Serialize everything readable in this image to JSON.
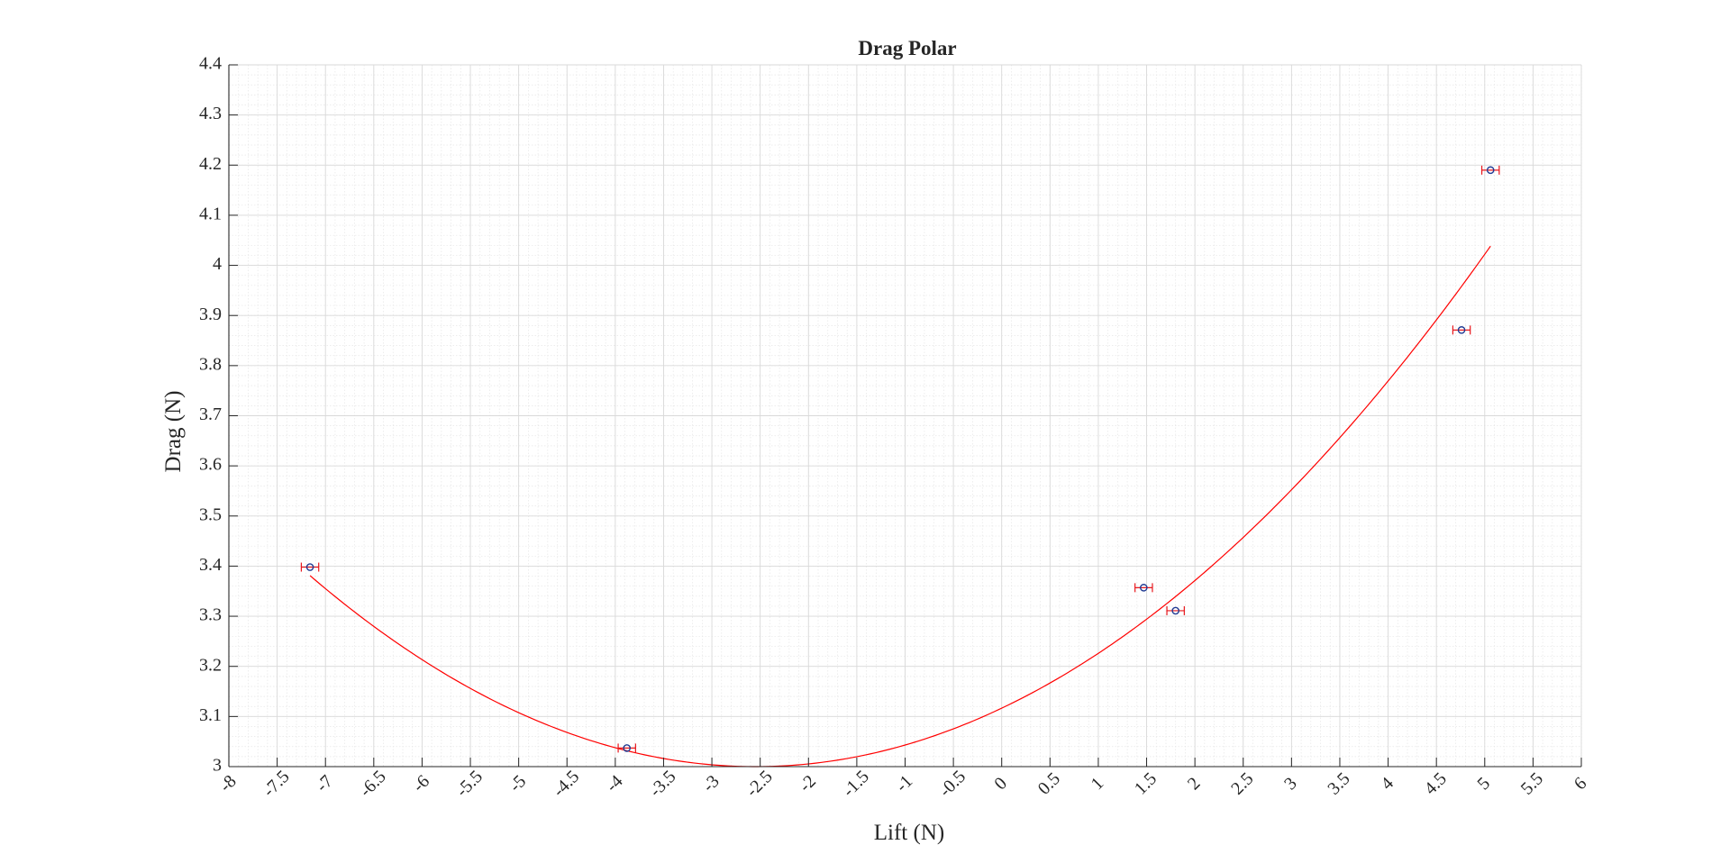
{
  "chart_data": {
    "type": "scatter",
    "title": "Drag Polar",
    "xlabel": "Lift (N)",
    "ylabel": "Drag (N)",
    "xlim": [
      -8,
      6
    ],
    "ylim": [
      3,
      4.4
    ],
    "grid": true,
    "minor_grid": true,
    "xticks": [
      -8,
      -7.5,
      -7,
      -6.5,
      -6,
      -5.5,
      -5,
      -4.5,
      -4,
      -3.5,
      -3,
      -2.5,
      -2,
      -1.5,
      -1,
      -0.5,
      0,
      0.5,
      1,
      1.5,
      2,
      2.5,
      3,
      3.5,
      4,
      4.5,
      5,
      5.5,
      6
    ],
    "xtick_labels": [
      "-8",
      "-7.5",
      "-7",
      "-6.5",
      "-6",
      "-5.5",
      "-5",
      "-4.5",
      "-4",
      "-3.5",
      "-3",
      "-2.5",
      "-2",
      "-1.5",
      "-1",
      "-0.5",
      "0",
      "0.5",
      "1",
      "1.5",
      "2",
      "2.5",
      "3",
      "3.5",
      "4",
      "4.5",
      "5",
      "5.5",
      "6"
    ],
    "yticks": [
      3,
      3.1,
      3.2,
      3.3,
      3.4,
      3.5,
      3.6,
      3.7,
      3.8,
      3.9,
      4,
      4.1,
      4.2,
      4.3,
      4.4
    ],
    "ytick_labels": [
      "3",
      "3.1",
      "3.2",
      "3.3",
      "3.4",
      "3.5",
      "3.6",
      "3.7",
      "3.8",
      "3.9",
      "4",
      "4.1",
      "4.2",
      "4.3",
      "4.4"
    ],
    "points": {
      "x": [
        -7.16,
        -3.88,
        1.47,
        1.8,
        4.76,
        5.06
      ],
      "y": [
        3.398,
        3.037,
        3.357,
        3.311,
        3.871,
        4.19
      ],
      "x_err": [
        0.09,
        0.09,
        0.09,
        0.09,
        0.09,
        0.09
      ],
      "marker_color": "#1f3a93",
      "errorbar_color": "#e8161b"
    },
    "fit_curve": {
      "type": "quadratic",
      "x_range": [
        -7.16,
        5.06
      ],
      "vertex_x": -2.55,
      "vertex_y": 3.0,
      "coefficient": 0.01793,
      "color": "#ff0000"
    }
  }
}
